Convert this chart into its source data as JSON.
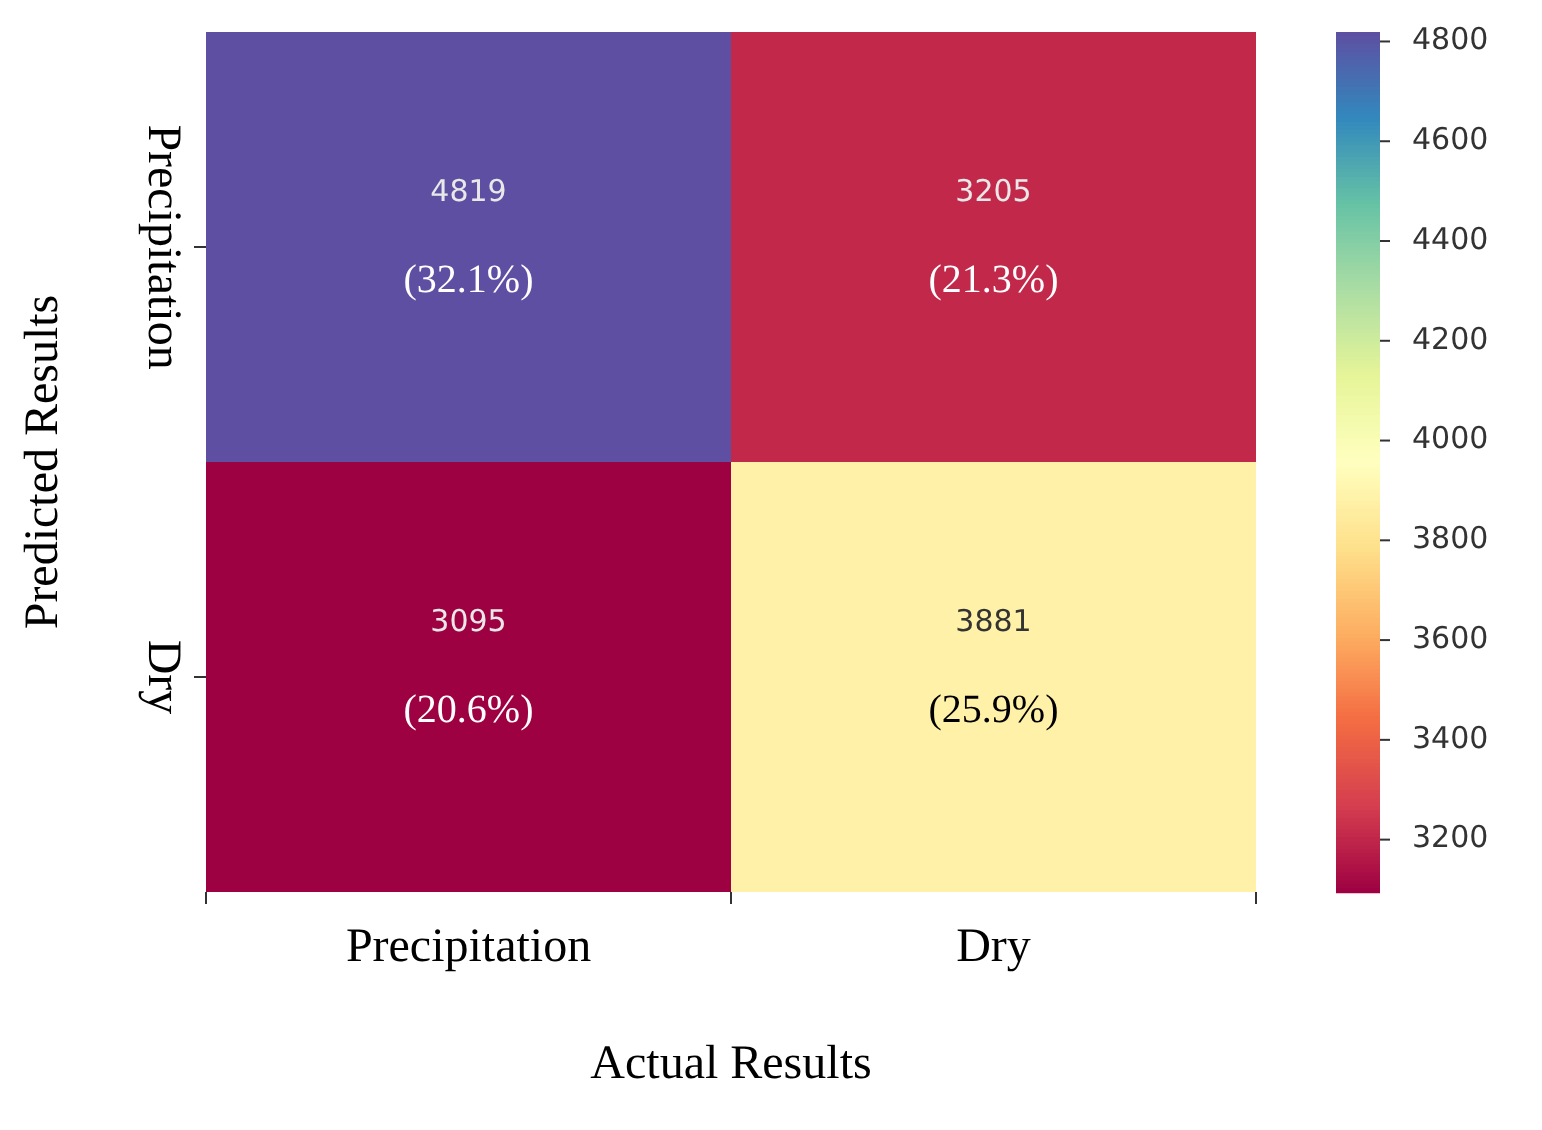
{
  "chart_data": {
    "type": "heatmap",
    "xlabel": "Actual Results",
    "ylabel": "Predicted Results",
    "categories": [
      "Precipitation",
      "Dry"
    ],
    "y_categories": [
      "Precipitation",
      "Dry"
    ],
    "cells": [
      [
        4819,
        3205
      ],
      [
        3095,
        3881
      ]
    ],
    "cell_labels": [
      [
        "4819\n(32.1%)",
        "3205\n(21.3%)"
      ],
      [
        "3095\n(20.6%)",
        "3881\n(25.9%)"
      ]
    ],
    "clim": [
      3095,
      4819
    ],
    "cticks": [
      3200,
      3400,
      3600,
      3800,
      4000,
      4200,
      4400,
      4600,
      4800
    ]
  }
}
